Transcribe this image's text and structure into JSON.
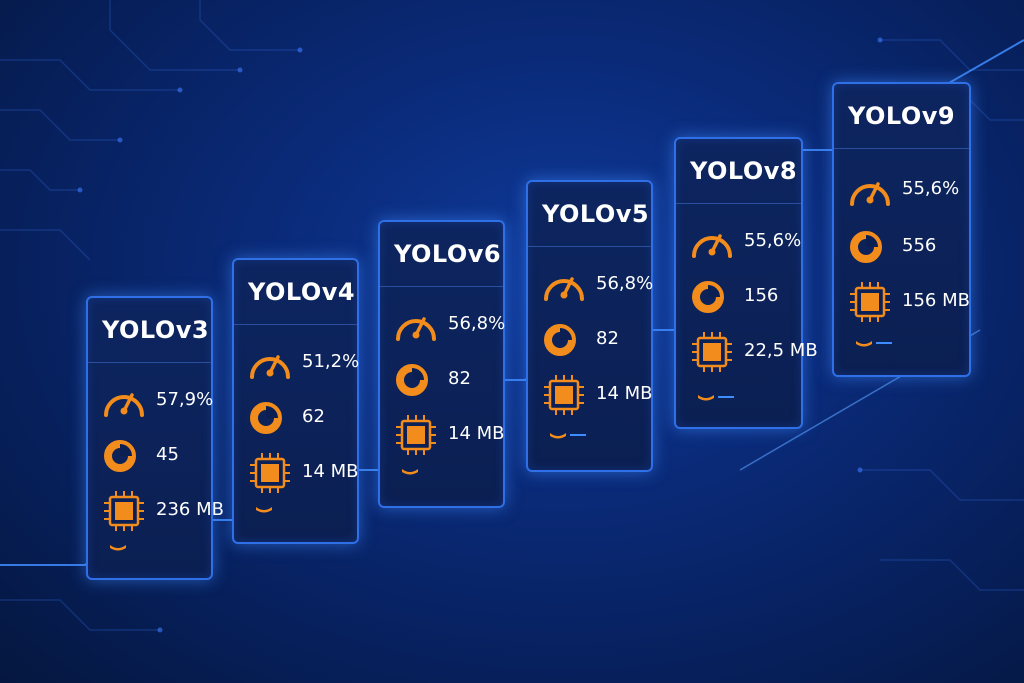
{
  "accent_color": "#f28c1c",
  "icons": {
    "speed": "gauge-icon",
    "throughput": "pie-chart-icon",
    "size": "cpu-chip-icon"
  },
  "cards": [
    {
      "title": "YOLOv3",
      "accuracy": "57,9%",
      "fps": "45",
      "size": "236 MB"
    },
    {
      "title": "YOLOv4",
      "accuracy": "51,2%",
      "fps": "62",
      "size": "14 MB"
    },
    {
      "title": "YOLOv6",
      "accuracy": "56,8%",
      "fps": "82",
      "size": "14 MB"
    },
    {
      "title": "YOLOv5",
      "accuracy": "56,8%",
      "fps": "82",
      "size": "14 MB"
    },
    {
      "title": "YOLOv8",
      "accuracy": "55,6%",
      "fps": "156",
      "size": "22,5 MB"
    },
    {
      "title": "YOLOv9",
      "accuracy": "55,6%",
      "fps": "556",
      "size": "156 MB"
    }
  ]
}
